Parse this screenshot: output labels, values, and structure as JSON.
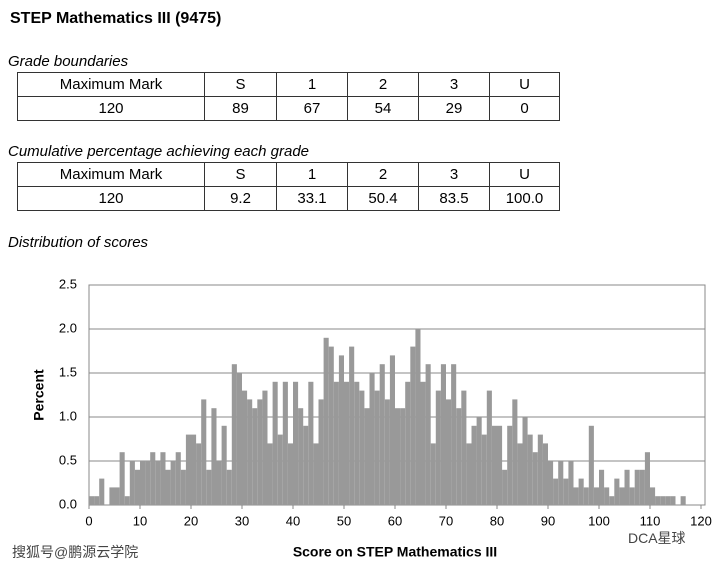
{
  "title": "STEP Mathematics III (9475)",
  "grade_boundaries": {
    "heading": "Grade boundaries",
    "header": [
      "Maximum Mark",
      "S",
      "1",
      "2",
      "3",
      "U"
    ],
    "row": [
      "120",
      "89",
      "67",
      "54",
      "29",
      "0"
    ]
  },
  "cumulative": {
    "heading": "Cumulative percentage achieving each grade",
    "header": [
      "Maximum Mark",
      "S",
      "1",
      "2",
      "3",
      "U"
    ],
    "row": [
      "120",
      "9.2",
      "33.1",
      "50.4",
      "83.5",
      "100.0"
    ]
  },
  "distribution_heading": "Distribution of scores",
  "chart_data": {
    "type": "histogram",
    "x_label": "Score on STEP Mathematics III",
    "y_label": "Percent",
    "color": "#999999",
    "grid": true,
    "bins": [
      0,
      1,
      2,
      3,
      4,
      5,
      6,
      7,
      8,
      9,
      10,
      11,
      12,
      13,
      14,
      15,
      16,
      17,
      18,
      19,
      20,
      21,
      22,
      23,
      24,
      25,
      26,
      27,
      28,
      29,
      30,
      31,
      32,
      33,
      34,
      35,
      36,
      37,
      38,
      39,
      40,
      41,
      42,
      43,
      44,
      45,
      46,
      47,
      48,
      49,
      50,
      51,
      52,
      53,
      54,
      55,
      56,
      57,
      58,
      59,
      60,
      61,
      62,
      63,
      64,
      65,
      66,
      67,
      68,
      69,
      70,
      71,
      72,
      73,
      74,
      75,
      76,
      77,
      78,
      79,
      80,
      81,
      82,
      83,
      84,
      85,
      86,
      87,
      88,
      89,
      90,
      91,
      92,
      93,
      94,
      95,
      96,
      97,
      98,
      99,
      100,
      101,
      102,
      103,
      104,
      105,
      106,
      107,
      108,
      109,
      110,
      111,
      112,
      113,
      114,
      115,
      116,
      117,
      118,
      119,
      120
    ],
    "values": [
      0.1,
      0.1,
      0.3,
      0,
      0.2,
      0.2,
      0.6,
      0.1,
      0.5,
      0.4,
      0.5,
      0.5,
      0.6,
      0.5,
      0.6,
      0.4,
      0.5,
      0.6,
      0.4,
      0.8,
      0.8,
      0.7,
      1.2,
      0.4,
      1.1,
      0.5,
      0.9,
      0.4,
      1.6,
      1.5,
      1.3,
      1.2,
      1.1,
      1.2,
      1.3,
      0.7,
      1.4,
      0.8,
      1.4,
      0.7,
      1.4,
      1.1,
      0.9,
      1.4,
      0.7,
      1.2,
      1.9,
      1.8,
      1.4,
      1.7,
      1.4,
      1.8,
      1.4,
      1.3,
      1.1,
      1.5,
      1.3,
      1.6,
      1.2,
      1.7,
      1.1,
      1.1,
      1.4,
      1.8,
      2.0,
      1.4,
      1.6,
      0.7,
      1.3,
      1.6,
      1.2,
      1.6,
      1.1,
      1.3,
      0.7,
      0.9,
      1.0,
      0.8,
      1.3,
      0.9,
      0.9,
      0.4,
      0.9,
      1.2,
      0.7,
      1.0,
      0.8,
      0.6,
      0.8,
      0.7,
      0.5,
      0.3,
      0.5,
      0.3,
      0.5,
      0.2,
      0.3,
      0.2,
      0.9,
      0.2,
      0.4,
      0.2,
      0.1,
      0.3,
      0.2,
      0.4,
      0.2,
      0.4,
      0.4,
      0.6,
      0.2,
      0.1,
      0.1,
      0.1,
      0.1,
      0,
      0.1,
      0,
      0,
      0
    ],
    "xlim": [
      0,
      120
    ],
    "xticks": [
      0,
      10,
      20,
      30,
      40,
      50,
      60,
      70,
      80,
      90,
      100,
      110,
      120
    ],
    "ylim": [
      0,
      2.5
    ],
    "yticks": [
      {
        "value": 0,
        "label": "0.0"
      },
      0.5,
      {
        "value": 1,
        "label": "1.0"
      },
      1.5,
      {
        "value": 2,
        "label": "2.0"
      },
      2.5
    ]
  },
  "watermarks": [
    "搜狐号@鹏源云学院",
    "DCA星球"
  ]
}
